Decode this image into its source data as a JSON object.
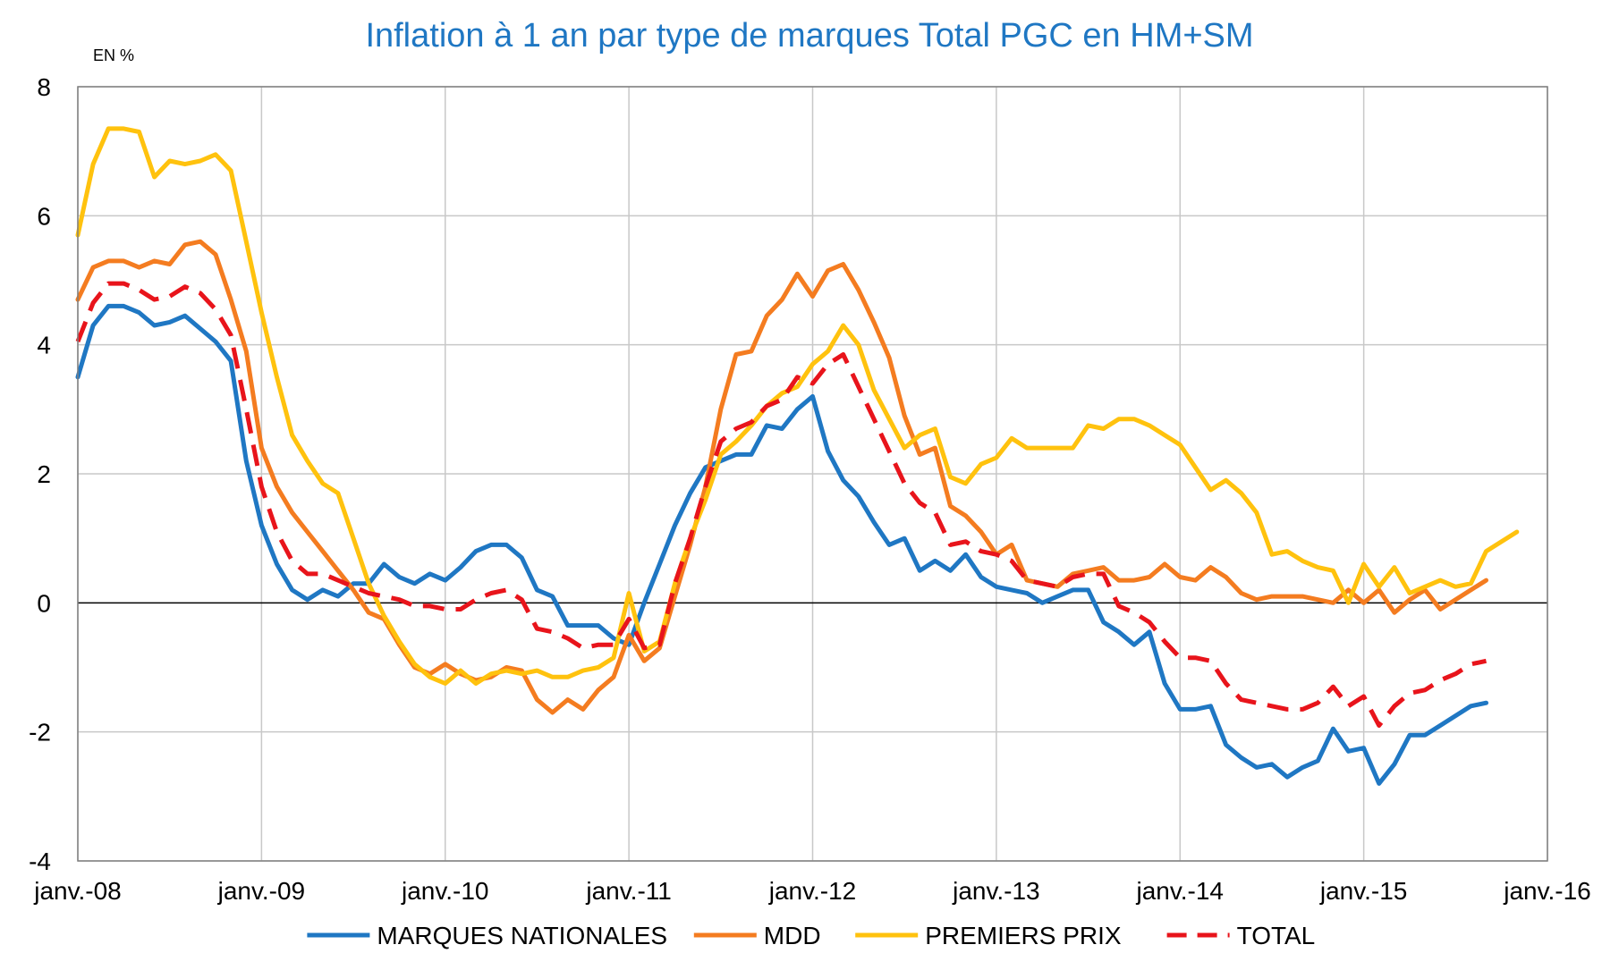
{
  "chart_data": {
    "type": "line",
    "title": "Inflation à 1 an par type de marques Total PGC en HM+SM",
    "unit_label": "EN %",
    "xlabel": "",
    "ylabel": "",
    "ylim": [
      -4,
      8
    ],
    "y_ticks": [
      -4,
      -2,
      0,
      2,
      4,
      6,
      8
    ],
    "y_tick_labels": [
      "-4",
      "-2",
      "0",
      "2",
      "4",
      "6",
      "8"
    ],
    "x_ticks": [
      "2008-01",
      "2009-01",
      "2010-01",
      "2011-01",
      "2012-01",
      "2013-01",
      "2014-01",
      "2015-01",
      "2016-01"
    ],
    "x_tick_labels": [
      "janv.-08",
      "janv.-09",
      "janv.-10",
      "janv.-11",
      "janv.-12",
      "janv.-13",
      "janv.-14",
      "janv.-15",
      "janv.-16"
    ],
    "x_range": [
      "2008-01",
      "2016-01"
    ],
    "grid": true,
    "legend_position": "bottom",
    "x_start": "2008-01",
    "series": [
      {
        "name": "MARQUES NATIONALES",
        "color": "#1F77C3",
        "dash": "solid",
        "values": [
          3.5,
          4.3,
          4.6,
          4.6,
          4.5,
          4.3,
          4.35,
          4.45,
          4.25,
          4.05,
          3.75,
          2.2,
          1.2,
          0.6,
          0.2,
          0.05,
          0.2,
          0.1,
          0.3,
          0.3,
          0.6,
          0.4,
          0.3,
          0.45,
          0.35,
          0.55,
          0.8,
          0.9,
          0.9,
          0.7,
          0.2,
          0.1,
          -0.35,
          -0.35,
          -0.35,
          -0.55,
          -0.65,
          0.0,
          0.6,
          1.2,
          1.7,
          2.1,
          2.2,
          2.3,
          2.3,
          2.75,
          2.7,
          3.0,
          3.2,
          2.35,
          1.9,
          1.65,
          1.25,
          0.9,
          1.0,
          0.5,
          0.65,
          0.5,
          0.75,
          0.4,
          0.25,
          0.2,
          0.15,
          0.0,
          0.1,
          0.2,
          0.2,
          -0.3,
          -0.45,
          -0.65,
          -0.45,
          -1.25,
          -1.65,
          -1.65,
          -1.6,
          -2.2,
          -2.4,
          -2.55,
          -2.5,
          -2.7,
          -2.55,
          -2.45,
          -1.95,
          -2.3,
          -2.25,
          -2.8,
          -2.5,
          -2.05,
          -2.05,
          -1.9,
          -1.75,
          -1.6,
          -1.55
        ]
      },
      {
        "name": "MDD",
        "color": "#F47C20",
        "dash": "solid",
        "values": [
          4.7,
          5.2,
          5.3,
          5.3,
          5.2,
          5.3,
          5.25,
          5.55,
          5.6,
          5.4,
          4.7,
          3.9,
          2.4,
          1.8,
          1.4,
          1.1,
          0.8,
          0.5,
          0.2,
          -0.15,
          -0.25,
          -0.65,
          -1.0,
          -1.1,
          -0.95,
          -1.1,
          -1.2,
          -1.15,
          -1.0,
          -1.05,
          -1.5,
          -1.7,
          -1.5,
          -1.65,
          -1.35,
          -1.15,
          -0.5,
          -0.9,
          -0.7,
          0.1,
          0.9,
          1.8,
          3.0,
          3.85,
          3.9,
          4.45,
          4.7,
          5.1,
          4.75,
          5.15,
          5.25,
          4.85,
          4.35,
          3.8,
          2.9,
          2.3,
          2.4,
          1.5,
          1.35,
          1.1,
          0.75,
          0.9,
          0.35,
          0.3,
          0.25,
          0.45,
          0.5,
          0.55,
          0.35,
          0.35,
          0.4,
          0.6,
          0.4,
          0.35,
          0.55,
          0.4,
          0.15,
          0.05,
          0.1,
          0.1,
          0.1,
          0.05,
          0.0,
          0.2,
          0.0,
          0.2,
          -0.15,
          0.05,
          0.2,
          -0.1,
          0.05,
          0.2,
          0.35
        ]
      },
      {
        "name": "PREMIERS PRIX",
        "color": "#FFC20E",
        "dash": "solid",
        "values": [
          5.7,
          6.8,
          7.35,
          7.35,
          7.3,
          6.6,
          6.85,
          6.8,
          6.85,
          6.95,
          6.7,
          5.6,
          4.5,
          3.5,
          2.6,
          2.2,
          1.85,
          1.7,
          1.0,
          0.3,
          -0.2,
          -0.6,
          -0.95,
          -1.15,
          -1.25,
          -1.05,
          -1.25,
          -1.1,
          -1.05,
          -1.1,
          -1.05,
          -1.15,
          -1.15,
          -1.05,
          -1.0,
          -0.85,
          0.15,
          -0.75,
          -0.6,
          0.3,
          1.0,
          1.6,
          2.3,
          2.5,
          2.75,
          3.05,
          3.25,
          3.35,
          3.7,
          3.9,
          4.3,
          4.0,
          3.3,
          2.85,
          2.4,
          2.6,
          2.7,
          1.95,
          1.85,
          2.15,
          2.25,
          2.55,
          2.4,
          2.4,
          2.4,
          2.4,
          2.75,
          2.7,
          2.85,
          2.85,
          2.75,
          2.6,
          2.45,
          2.1,
          1.75,
          1.9,
          1.7,
          1.4,
          0.75,
          0.8,
          0.65,
          0.55,
          0.5,
          0.0,
          0.6,
          0.25,
          0.55,
          0.15,
          0.25,
          0.35,
          0.25,
          0.3,
          0.8,
          0.95,
          1.1
        ]
      },
      {
        "name": "TOTAL",
        "color": "#E8141B",
        "dash": "dashed",
        "values": [
          4.05,
          4.65,
          4.95,
          4.95,
          4.85,
          4.7,
          4.75,
          4.9,
          4.8,
          4.55,
          4.15,
          3.0,
          1.8,
          1.1,
          0.65,
          0.45,
          0.45,
          0.35,
          0.25,
          0.15,
          0.1,
          0.05,
          -0.05,
          -0.05,
          -0.1,
          -0.1,
          0.05,
          0.15,
          0.2,
          0.05,
          -0.4,
          -0.45,
          -0.55,
          -0.7,
          -0.65,
          -0.65,
          -0.25,
          -0.7,
          -0.65,
          0.3,
          1.0,
          1.8,
          2.5,
          2.7,
          2.8,
          3.05,
          3.15,
          3.5,
          3.4,
          3.7,
          3.85,
          3.35,
          2.85,
          2.35,
          1.85,
          1.55,
          1.4,
          0.9,
          0.95,
          0.8,
          0.75,
          0.65,
          0.35,
          0.3,
          0.25,
          0.4,
          0.45,
          0.45,
          -0.05,
          -0.15,
          -0.3,
          -0.6,
          -0.85,
          -0.85,
          -0.9,
          -1.25,
          -1.5,
          -1.55,
          -1.6,
          -1.65,
          -1.65,
          -1.55,
          -1.3,
          -1.6,
          -1.45,
          -1.9,
          -1.6,
          -1.4,
          -1.35,
          -1.2,
          -1.1,
          -0.95,
          -0.9
        ]
      }
    ]
  }
}
